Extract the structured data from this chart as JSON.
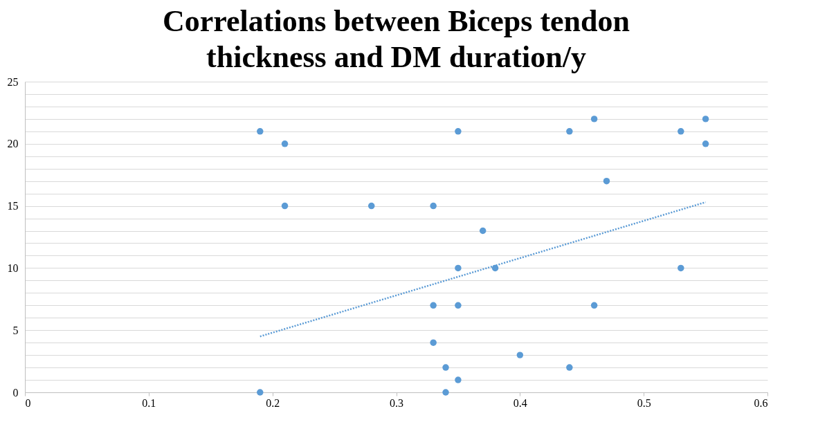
{
  "chart_data": {
    "type": "scatter",
    "title": "Correlations between Biceps tendon thickness and DM duration/y",
    "series": [
      {
        "color": "#5b9bd5",
        "marker": "circle",
        "x": [
          0.19,
          0.21,
          0.21,
          0.28,
          0.33,
          0.35,
          0.44,
          0.46,
          0.53,
          0.55,
          0.55,
          0.47,
          0.37,
          0.35,
          0.38,
          0.53,
          0.33,
          0.35,
          0.46,
          0.33,
          0.34,
          0.4,
          0.44,
          0.35,
          0.19,
          0.34
        ],
        "values": [
          21,
          20,
          15,
          15,
          15,
          21,
          21,
          22,
          21,
          22,
          20,
          17,
          13,
          10,
          10,
          10,
          7,
          7,
          7,
          4,
          2,
          3,
          2,
          1,
          0,
          0
        ]
      },
      {
        "type": "line",
        "color": "#5b9bd5",
        "line_style": "dotted",
        "marker": "none",
        "x": [
          0.19,
          0.55
        ],
        "values": [
          4.5,
          15.3
        ]
      }
    ],
    "xlim": [
      0,
      0.6
    ],
    "xticks": [
      0,
      0.1,
      0.2,
      0.3,
      0.4,
      0.5,
      0.6
    ],
    "ylim": [
      0,
      25
    ],
    "yticks": [
      0,
      {
        "value": 1,
        "label": null
      },
      {
        "value": 2,
        "label": null
      },
      {
        "value": 3,
        "label": null
      },
      {
        "value": 4,
        "label": null
      },
      5,
      {
        "value": 6,
        "label": null
      },
      {
        "value": 7,
        "label": null
      },
      {
        "value": 8,
        "label": null
      },
      {
        "value": 9,
        "label": null
      },
      10,
      {
        "value": 11,
        "label": null
      },
      {
        "value": 12,
        "label": null
      },
      {
        "value": 13,
        "label": null
      },
      {
        "value": 14,
        "label": null
      },
      15,
      {
        "value": 16,
        "label": null
      },
      {
        "value": 17,
        "label": null
      },
      {
        "value": 18,
        "label": null
      },
      {
        "value": 19,
        "label": null
      },
      20,
      {
        "value": 21,
        "label": null
      },
      {
        "value": 22,
        "label": null
      },
      {
        "value": 23,
        "label": null
      },
      {
        "value": 24,
        "label": null
      },
      25
    ],
    "grid": "y"
  }
}
